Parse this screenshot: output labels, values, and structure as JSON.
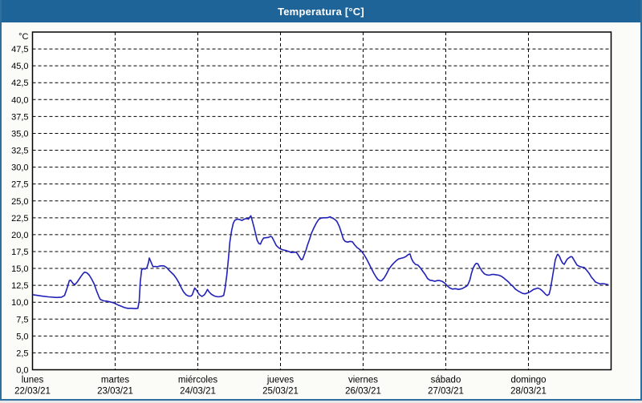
{
  "window": {
    "title": "Temperatura [°C]"
  },
  "colors": {
    "titlebar_bg": "#1e6499",
    "titlebar_text": "#ffffff",
    "window_border": "#2e6f9f",
    "window_bg": "#fbfcf8",
    "plot_bg": "#ffffff",
    "grid": "#000000",
    "line": "#2121b8"
  },
  "chart_data": {
    "type": "line",
    "title": "Temperatura [°C]",
    "ylabel": "°C",
    "ylim": [
      0,
      50
    ],
    "y_tick_step": 2.5,
    "y_tick_labels": [
      "0,0",
      "2,5",
      "5,0",
      "7,5",
      "10,0",
      "12,5",
      "15,0",
      "17,5",
      "20,0",
      "22,5",
      "25,0",
      "27,5",
      "30,0",
      "32,5",
      "35,0",
      "37,5",
      "40,0",
      "42,5",
      "45,0",
      "47,5"
    ],
    "grid": "dashed",
    "legend_position": "none",
    "x_days": [
      {
        "name": "lunes",
        "date": "22/03/21"
      },
      {
        "name": "martes",
        "date": "23/03/21"
      },
      {
        "name": "miércoles",
        "date": "24/03/21"
      },
      {
        "name": "jueves",
        "date": "25/03/21"
      },
      {
        "name": "viernes",
        "date": "26/03/21"
      },
      {
        "name": "sábado",
        "date": "27/03/21"
      },
      {
        "name": "domingo",
        "date": "28/03/21"
      }
    ],
    "series": [
      {
        "name": "Temperatura",
        "unit": "°C",
        "x_unit": "hours",
        "points": [
          [
            0.2,
            11.1
          ],
          [
            1.6,
            11.0
          ],
          [
            2.8,
            10.9
          ],
          [
            4.6,
            10.8
          ],
          [
            7.0,
            10.7
          ],
          [
            8.4,
            10.75
          ],
          [
            9.3,
            11.0
          ],
          [
            10.0,
            12.0
          ],
          [
            10.7,
            13.2
          ],
          [
            11.1,
            13.25
          ],
          [
            11.8,
            12.75
          ],
          [
            12.3,
            12.6
          ],
          [
            13.0,
            13.0
          ],
          [
            13.9,
            13.7
          ],
          [
            14.6,
            14.2
          ],
          [
            15.1,
            14.45
          ],
          [
            15.8,
            14.35
          ],
          [
            16.5,
            14.0
          ],
          [
            17.2,
            13.4
          ],
          [
            17.9,
            12.7
          ],
          [
            18.6,
            11.7
          ],
          [
            19.3,
            10.8
          ],
          [
            19.7,
            10.4
          ],
          [
            20.7,
            10.2
          ],
          [
            21.6,
            10.15
          ],
          [
            22.5,
            10.05
          ],
          [
            23.2,
            9.95
          ],
          [
            23.9,
            9.85
          ],
          [
            24.8,
            9.6
          ],
          [
            25.8,
            9.4
          ],
          [
            26.7,
            9.2
          ],
          [
            27.6,
            9.1
          ],
          [
            28.8,
            9.1
          ],
          [
            29.9,
            9.05
          ],
          [
            30.6,
            9.1
          ],
          [
            31.0,
            10.2
          ],
          [
            31.3,
            13.0
          ],
          [
            31.7,
            14.8
          ],
          [
            32.3,
            15.0
          ],
          [
            32.7,
            14.9
          ],
          [
            33.2,
            15.1
          ],
          [
            33.7,
            15.9
          ],
          [
            33.9,
            16.55
          ],
          [
            34.2,
            16.2
          ],
          [
            34.6,
            15.7
          ],
          [
            35.0,
            15.25
          ],
          [
            35.5,
            15.3
          ],
          [
            36.2,
            15.25
          ],
          [
            36.9,
            15.35
          ],
          [
            37.6,
            15.4
          ],
          [
            38.3,
            15.35
          ],
          [
            39.0,
            15.1
          ],
          [
            39.7,
            14.7
          ],
          [
            40.4,
            14.35
          ],
          [
            41.1,
            14.0
          ],
          [
            41.8,
            13.5
          ],
          [
            42.5,
            12.9
          ],
          [
            43.2,
            12.15
          ],
          [
            43.9,
            11.5
          ],
          [
            44.6,
            11.1
          ],
          [
            45.3,
            10.9
          ],
          [
            46.0,
            10.9
          ],
          [
            46.4,
            11.1
          ],
          [
            47.1,
            12.1
          ],
          [
            47.6,
            11.8
          ],
          [
            48.1,
            11.4
          ],
          [
            48.5,
            11.1
          ],
          [
            49.2,
            10.85
          ],
          [
            49.9,
            11.1
          ],
          [
            50.4,
            11.5
          ],
          [
            50.8,
            11.9
          ],
          [
            51.3,
            11.5
          ],
          [
            52.0,
            11.15
          ],
          [
            52.9,
            10.9
          ],
          [
            53.9,
            10.8
          ],
          [
            54.8,
            10.85
          ],
          [
            55.5,
            11.0
          ],
          [
            55.9,
            12.0
          ],
          [
            56.4,
            14.0
          ],
          [
            56.9,
            16.5
          ],
          [
            57.3,
            18.9
          ],
          [
            57.8,
            20.6
          ],
          [
            58.3,
            21.7
          ],
          [
            58.7,
            22.1
          ],
          [
            59.4,
            22.3
          ],
          [
            60.1,
            22.25
          ],
          [
            60.8,
            22.1
          ],
          [
            61.5,
            22.3
          ],
          [
            62.2,
            22.4
          ],
          [
            62.7,
            22.3
          ],
          [
            63.1,
            22.6
          ],
          [
            63.4,
            22.8
          ],
          [
            63.8,
            22.1
          ],
          [
            64.3,
            21.1
          ],
          [
            64.8,
            20.1
          ],
          [
            65.2,
            19.2
          ],
          [
            65.7,
            18.7
          ],
          [
            66.2,
            18.6
          ],
          [
            66.6,
            19.1
          ],
          [
            67.1,
            19.5
          ],
          [
            67.8,
            19.55
          ],
          [
            68.5,
            19.6
          ],
          [
            69.2,
            19.75
          ],
          [
            69.6,
            19.6
          ],
          [
            70.3,
            18.9
          ],
          [
            70.8,
            18.4
          ],
          [
            71.5,
            18.05
          ],
          [
            72.0,
            17.9
          ],
          [
            72.7,
            17.75
          ],
          [
            73.6,
            17.65
          ],
          [
            74.5,
            17.5
          ],
          [
            75.2,
            17.35
          ],
          [
            75.9,
            17.4
          ],
          [
            76.6,
            17.4
          ],
          [
            77.0,
            17.1
          ],
          [
            77.5,
            16.7
          ],
          [
            78.0,
            16.3
          ],
          [
            78.4,
            16.35
          ],
          [
            78.9,
            17.0
          ],
          [
            79.4,
            17.7
          ],
          [
            79.8,
            18.4
          ],
          [
            80.3,
            19.1
          ],
          [
            81.0,
            20.2
          ],
          [
            81.7,
            21.0
          ],
          [
            82.4,
            21.7
          ],
          [
            83.1,
            22.25
          ],
          [
            83.8,
            22.45
          ],
          [
            84.5,
            22.5
          ],
          [
            85.2,
            22.5
          ],
          [
            85.9,
            22.55
          ],
          [
            86.4,
            22.65
          ],
          [
            87.1,
            22.45
          ],
          [
            87.8,
            22.25
          ],
          [
            88.4,
            21.95
          ],
          [
            89.1,
            21.2
          ],
          [
            89.8,
            20.1
          ],
          [
            90.3,
            19.3
          ],
          [
            90.8,
            19.0
          ],
          [
            91.5,
            18.9
          ],
          [
            92.2,
            19.0
          ],
          [
            92.9,
            18.95
          ],
          [
            93.5,
            18.5
          ],
          [
            94.2,
            18.1
          ],
          [
            94.9,
            17.85
          ],
          [
            95.6,
            17.5
          ],
          [
            96.3,
            17.0
          ],
          [
            97.0,
            16.4
          ],
          [
            97.7,
            15.7
          ],
          [
            98.4,
            15.0
          ],
          [
            99.1,
            14.3
          ],
          [
            99.8,
            13.7
          ],
          [
            100.3,
            13.35
          ],
          [
            101.0,
            13.15
          ],
          [
            101.4,
            13.2
          ],
          [
            102.1,
            13.6
          ],
          [
            102.8,
            14.2
          ],
          [
            103.5,
            14.9
          ],
          [
            104.2,
            15.4
          ],
          [
            104.9,
            15.8
          ],
          [
            105.6,
            16.15
          ],
          [
            106.3,
            16.4
          ],
          [
            107.0,
            16.5
          ],
          [
            107.7,
            16.6
          ],
          [
            108.4,
            16.75
          ],
          [
            109.1,
            17.05
          ],
          [
            109.6,
            17.15
          ],
          [
            110.0,
            16.5
          ],
          [
            110.5,
            16.0
          ],
          [
            111.2,
            15.6
          ],
          [
            111.9,
            15.5
          ],
          [
            112.6,
            15.1
          ],
          [
            113.3,
            14.6
          ],
          [
            114.0,
            14.1
          ],
          [
            114.7,
            13.5
          ],
          [
            115.4,
            13.25
          ],
          [
            116.1,
            13.2
          ],
          [
            116.8,
            13.1
          ],
          [
            117.5,
            13.2
          ],
          [
            118.2,
            13.2
          ],
          [
            118.9,
            13.1
          ],
          [
            119.8,
            12.8
          ],
          [
            120.5,
            12.4
          ],
          [
            121.2,
            12.1
          ],
          [
            121.9,
            11.95
          ],
          [
            122.8,
            12.0
          ],
          [
            123.7,
            11.9
          ],
          [
            124.7,
            12.0
          ],
          [
            125.4,
            12.2
          ],
          [
            126.1,
            12.4
          ],
          [
            126.5,
            12.7
          ],
          [
            127.0,
            13.3
          ],
          [
            127.4,
            14.2
          ],
          [
            127.9,
            15.0
          ],
          [
            128.4,
            15.5
          ],
          [
            128.8,
            15.75
          ],
          [
            129.3,
            15.7
          ],
          [
            129.8,
            15.2
          ],
          [
            130.5,
            14.6
          ],
          [
            131.2,
            14.2
          ],
          [
            131.9,
            14.05
          ],
          [
            132.6,
            14.0
          ],
          [
            133.3,
            14.1
          ],
          [
            134.0,
            14.1
          ],
          [
            134.7,
            14.05
          ],
          [
            135.4,
            14.0
          ],
          [
            136.1,
            13.85
          ],
          [
            136.8,
            13.6
          ],
          [
            137.5,
            13.3
          ],
          [
            138.2,
            13.0
          ],
          [
            138.9,
            12.6
          ],
          [
            139.6,
            12.3
          ],
          [
            140.2,
            11.95
          ],
          [
            140.9,
            11.7
          ],
          [
            141.6,
            11.5
          ],
          [
            142.3,
            11.3
          ],
          [
            143.0,
            11.25
          ],
          [
            143.4,
            11.3
          ],
          [
            144.1,
            11.45
          ],
          [
            144.8,
            11.65
          ],
          [
            145.5,
            11.9
          ],
          [
            146.2,
            12.0
          ],
          [
            146.7,
            12.1
          ],
          [
            147.4,
            11.95
          ],
          [
            148.1,
            11.65
          ],
          [
            148.6,
            11.4
          ],
          [
            149.0,
            11.15
          ],
          [
            149.5,
            11.0
          ],
          [
            150.0,
            11.2
          ],
          [
            150.4,
            12.0
          ],
          [
            150.9,
            13.5
          ],
          [
            151.4,
            15.1
          ],
          [
            151.8,
            16.3
          ],
          [
            152.3,
            16.95
          ],
          [
            152.5,
            17.1
          ],
          [
            153.0,
            16.8
          ],
          [
            153.4,
            16.3
          ],
          [
            153.9,
            15.8
          ],
          [
            154.4,
            15.6
          ],
          [
            154.8,
            16.0
          ],
          [
            155.3,
            16.4
          ],
          [
            155.8,
            16.6
          ],
          [
            156.3,
            16.75
          ],
          [
            156.7,
            16.7
          ],
          [
            157.4,
            16.1
          ],
          [
            158.1,
            15.5
          ],
          [
            158.8,
            15.3
          ],
          [
            159.5,
            15.2
          ],
          [
            160.2,
            15.15
          ],
          [
            160.9,
            14.75
          ],
          [
            161.6,
            14.3
          ],
          [
            162.3,
            13.7
          ],
          [
            163.0,
            13.3
          ],
          [
            163.4,
            13.0
          ],
          [
            164.1,
            12.85
          ],
          [
            164.8,
            12.7
          ],
          [
            165.5,
            12.75
          ],
          [
            166.2,
            12.7
          ],
          [
            167.1,
            12.6
          ]
        ]
      }
    ]
  }
}
